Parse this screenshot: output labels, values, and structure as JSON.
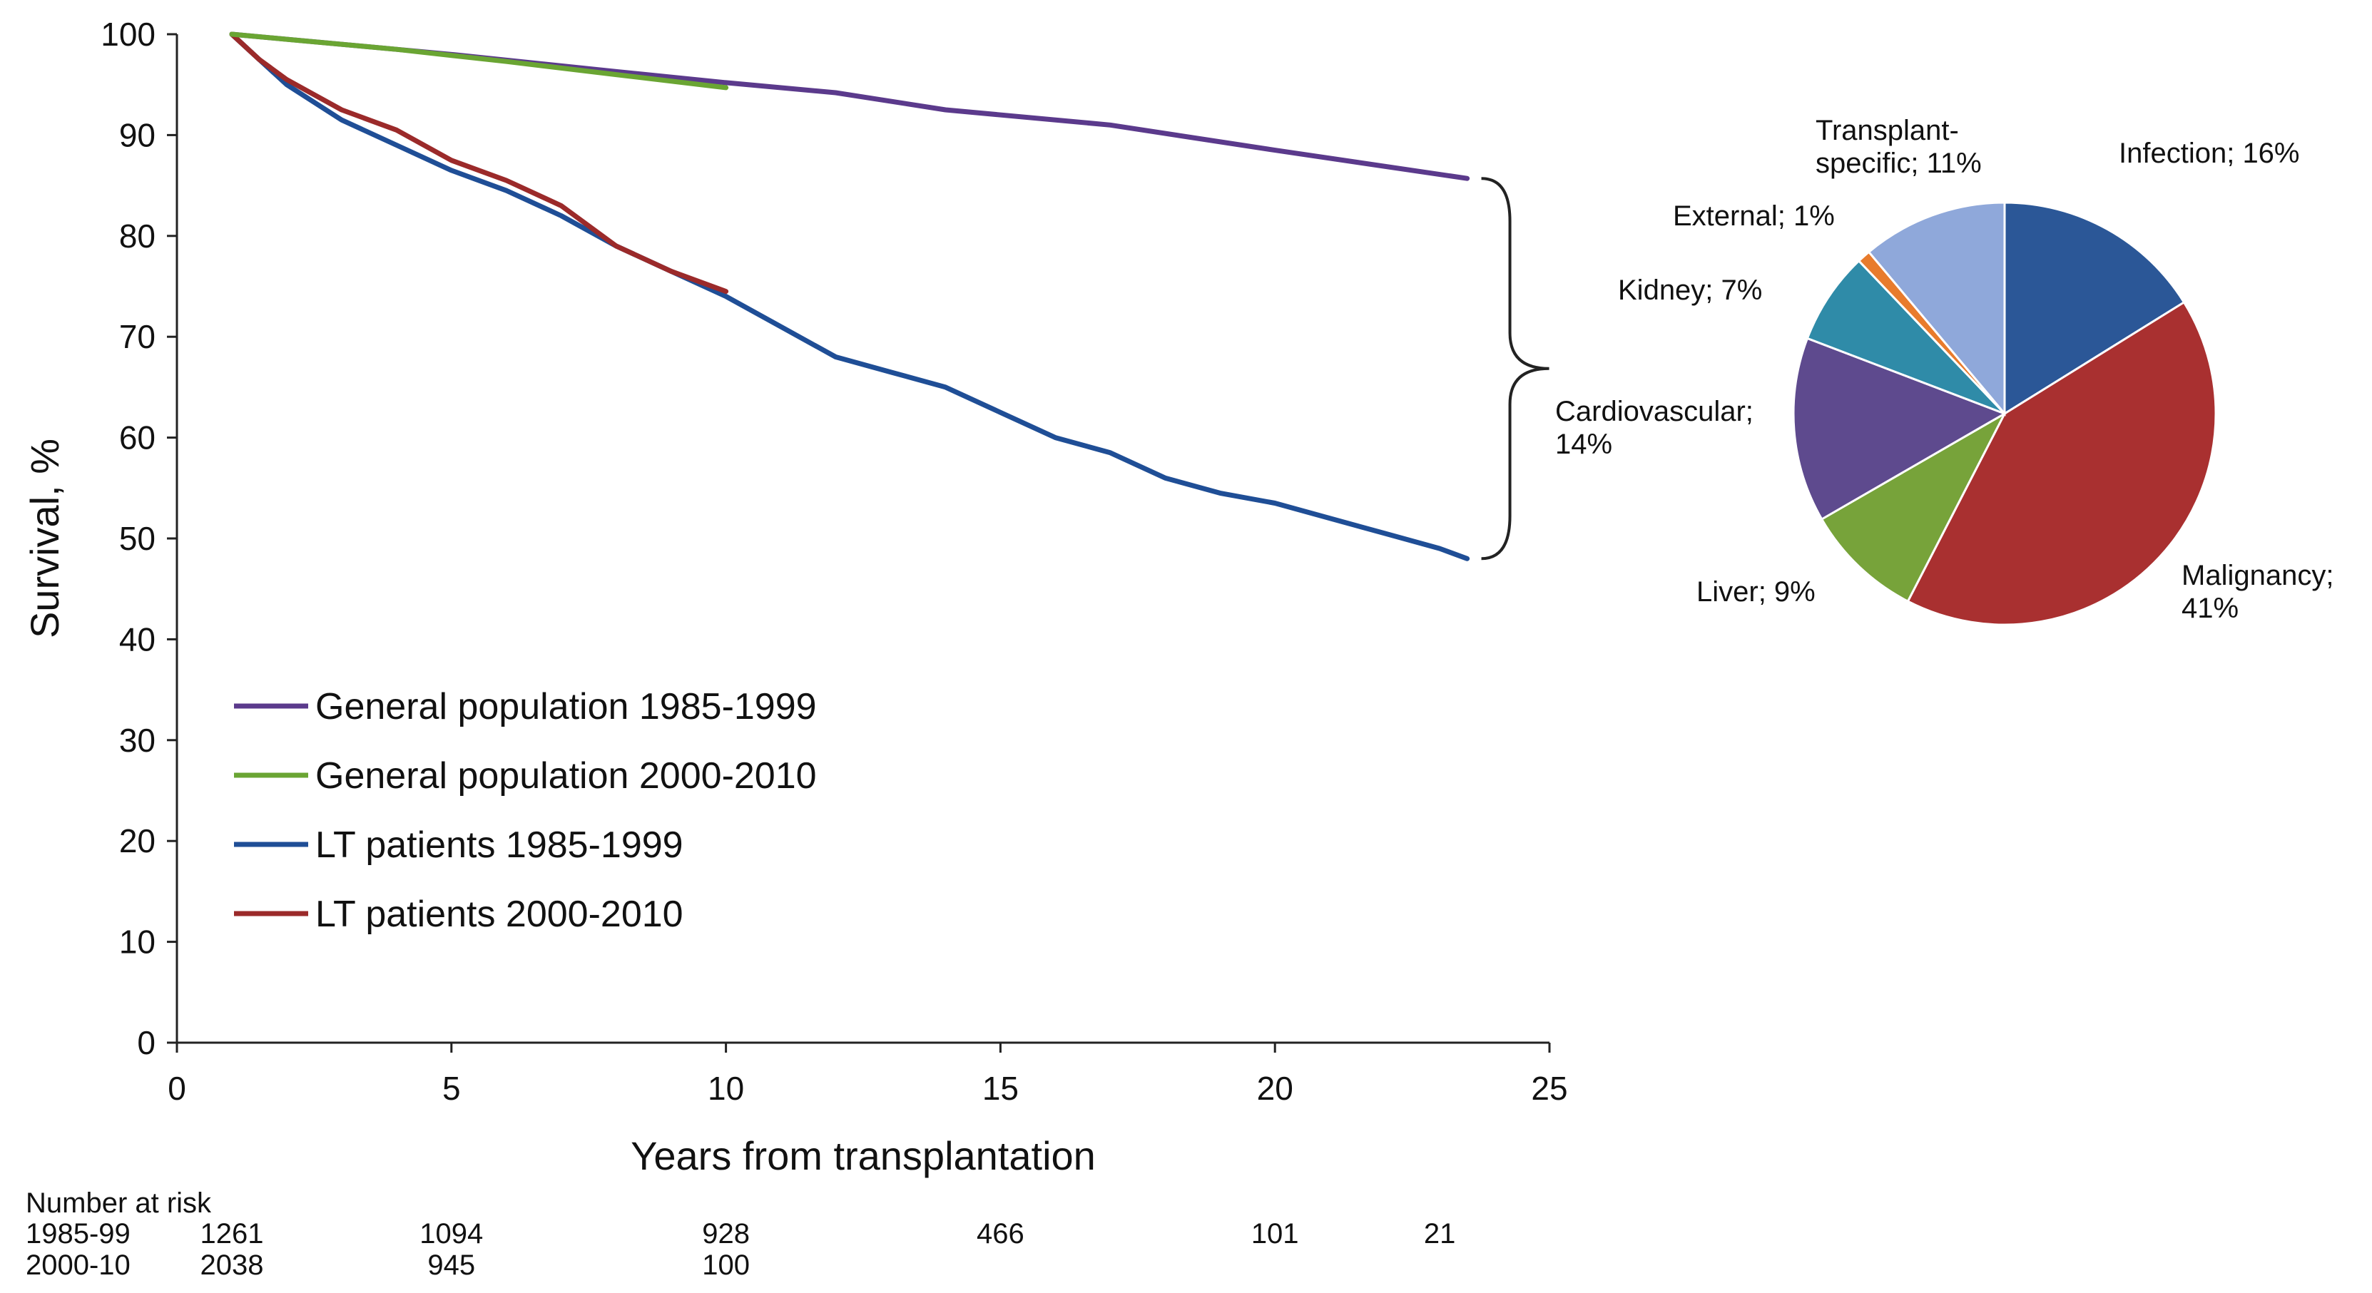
{
  "chart_data": [
    {
      "type": "line",
      "title": "",
      "xlabel": "Years from transplantation",
      "ylabel": "Survival, %",
      "xlim": [
        0,
        25
      ],
      "ylim": [
        0,
        100
      ],
      "x_ticks": [
        "0",
        "5",
        "10",
        "15",
        "20",
        "25"
      ],
      "y_ticks": [
        "0",
        "10",
        "20",
        "30",
        "40",
        "50",
        "60",
        "70",
        "80",
        "90",
        "100"
      ],
      "grid": false,
      "legend_position": "bottom-left",
      "series": [
        {
          "name": "General population 1985-1999",
          "color": "#5b3a8c",
          "x": [
            1,
            3,
            5,
            8,
            10,
            12,
            14,
            17,
            20,
            23.5
          ],
          "y": [
            100,
            99,
            98,
            96.3,
            95.2,
            94.2,
            92.5,
            91,
            88.5,
            85.7
          ]
        },
        {
          "name": "General population 2000-2010",
          "color": "#6aa533",
          "x": [
            1,
            2,
            4,
            6,
            8,
            10
          ],
          "y": [
            100,
            99.5,
            98.5,
            97.3,
            96,
            94.7
          ]
        },
        {
          "name": "LT patients 1985-1999",
          "color": "#1f4e96",
          "x": [
            1,
            1.5,
            2,
            3,
            4,
            5,
            6,
            7,
            8,
            9,
            10,
            11,
            12,
            13,
            14,
            15,
            16,
            17,
            18,
            19,
            20,
            21,
            22,
            23,
            23.5
          ],
          "y": [
            100,
            97.5,
            95,
            91.5,
            89,
            86.5,
            84.5,
            82,
            79,
            76.5,
            74,
            71,
            68,
            66.5,
            65,
            62.5,
            60,
            58.5,
            56,
            54.5,
            53.5,
            52,
            50.5,
            49,
            48
          ]
        },
        {
          "name": "LT patients 2000-2010",
          "color": "#9b2a2a",
          "x": [
            1,
            1.5,
            2,
            3,
            4,
            5,
            6,
            7,
            8,
            9,
            10
          ],
          "y": [
            100,
            97.5,
            95.5,
            92.5,
            90.5,
            87.5,
            85.5,
            83,
            79,
            76.5,
            74.5
          ]
        }
      ],
      "number_at_risk": {
        "title": "Number at risk",
        "rows": [
          {
            "label": "1985-99",
            "values": [
              "1261",
              "1094",
              "928",
              "466",
              "101",
              "21"
            ],
            "x": [
              1,
              5,
              10,
              15,
              20,
              23
            ]
          },
          {
            "label": "2000-10",
            "values": [
              "2038",
              "945",
              "100"
            ],
            "x": [
              1,
              5,
              10
            ]
          }
        ]
      }
    },
    {
      "type": "pie",
      "slices": [
        {
          "label_lines": [
            "Infection; 16%"
          ],
          "value": 16,
          "color": "#2b5797"
        },
        {
          "label_lines": [
            "Malignancy;",
            "41%"
          ],
          "value": 41,
          "color": "#a93030"
        },
        {
          "label_lines": [
            "Liver; 9%"
          ],
          "value": 9,
          "color": "#77a33a"
        },
        {
          "label_lines": [
            "Cardiovascular;",
            "14%"
          ],
          "value": 14,
          "color": "#5e4a8e"
        },
        {
          "label_lines": [
            "Kidney; 7%"
          ],
          "value": 7,
          "color": "#2f8ba8"
        },
        {
          "label_lines": [
            "External; 1%"
          ],
          "value": 1,
          "color": "#e87b2c"
        },
        {
          "label_lines": [
            "Transplant-",
            "specific; 11%"
          ],
          "value": 11,
          "color": "#8fa8da"
        }
      ]
    }
  ]
}
